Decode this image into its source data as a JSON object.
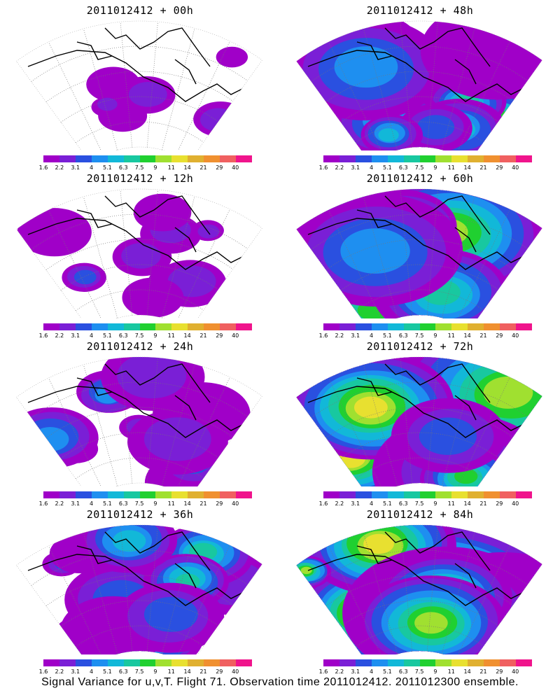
{
  "panels": [
    {
      "title": "2011012412 + 00h",
      "col": 0,
      "row": 0
    },
    {
      "title": "2011012412 + 12h",
      "col": 0,
      "row": 1
    },
    {
      "title": "2011012412 + 24h",
      "col": 0,
      "row": 2
    },
    {
      "title": "2011012412 + 36h",
      "col": 0,
      "row": 3
    },
    {
      "title": "2011012412 + 48h",
      "col": 1,
      "row": 0
    },
    {
      "title": "2011012412 + 60h",
      "col": 1,
      "row": 1
    },
    {
      "title": "2011012412 + 72h",
      "col": 1,
      "row": 2
    },
    {
      "title": "2011012412 + 84h",
      "col": 1,
      "row": 3
    }
  ],
  "colorbar": {
    "labels": [
      "1.6",
      "2.2",
      "3.1",
      "4",
      "5.1",
      "6.3",
      "7.5",
      "9",
      "11",
      "14",
      "21",
      "29",
      "40"
    ],
    "colors": [
      "#a000c8",
      "#7a1fd6",
      "#2a50e0",
      "#1e8ff0",
      "#12b8d8",
      "#18c8a0",
      "#20d030",
      "#a0e030",
      "#e8e030",
      "#e0b030",
      "#f09030",
      "#f06060",
      "#f0148c"
    ]
  },
  "footer": "Signal Variance for u,v,T. Flight 71. Observation time 2011012412. 2011012300 ensemble."
}
